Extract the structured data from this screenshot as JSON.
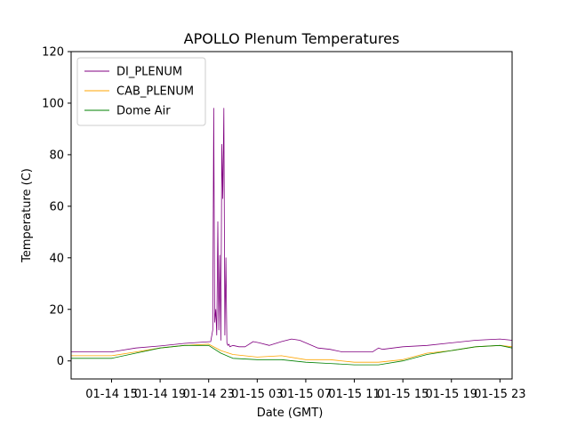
{
  "chart_data": {
    "type": "line",
    "title": "APOLLO Plenum Temperatures",
    "xlabel": "Date (GMT)",
    "ylabel": "Temperature (C)",
    "xlim": [
      "01-14 11:40",
      "01-16 00:00"
    ],
    "ylim": [
      -7,
      120
    ],
    "yticks": [
      0,
      20,
      40,
      60,
      80,
      100,
      120
    ],
    "ytick_labels": [
      "0",
      "20",
      "40",
      "60",
      "80",
      "100",
      "120"
    ],
    "xticks": [
      "01-14 15:00",
      "01-14 19:00",
      "01-14 23:00",
      "01-15 03:00",
      "01-15 07:00",
      "01-15 11:00",
      "01-15 15:00",
      "01-15 19:00",
      "01-15 23:00"
    ],
    "xtick_labels": [
      "01-14 15",
      "01-14 19",
      "01-14 23",
      "01-15 03",
      "01-15 07",
      "01-15 11",
      "01-15 15",
      "01-15 19",
      "01-15 23"
    ],
    "grid": false,
    "legend_position": "top-left",
    "series": [
      {
        "name": "DI_PLENUM",
        "color": "#800080",
        "x": [
          "01-14 11:40",
          "01-14 15:00",
          "01-14 17:00",
          "01-14 19:00",
          "01-14 21:00",
          "01-14 23:10",
          "01-14 23:20",
          "01-14 23:25",
          "01-14 23:30",
          "01-14 23:35",
          "01-14 23:40",
          "01-14 23:45",
          "01-14 23:50",
          "01-14 23:55",
          "01-15 00:00",
          "01-15 00:05",
          "01-15 00:10",
          "01-15 00:15",
          "01-15 00:20",
          "01-15 00:25",
          "01-15 00:30",
          "01-15 00:35",
          "01-15 00:40",
          "01-15 00:45",
          "01-15 01:00",
          "01-15 01:30",
          "01-15 02:00",
          "01-15 02:40",
          "01-15 03:10",
          "01-15 04:00",
          "01-15 05:00",
          "01-15 05:50",
          "01-15 06:30",
          "01-15 08:00",
          "01-15 09:00",
          "01-15 10:00",
          "01-15 11:00",
          "01-15 12:30",
          "01-15 13:00",
          "01-15 13:20",
          "01-15 15:00",
          "01-15 17:00",
          "01-15 19:00",
          "01-15 21:00",
          "01-15 23:00",
          "01-16 00:00"
        ],
        "values": [
          3.5,
          3.5,
          5.0,
          5.8,
          6.8,
          7.5,
          12,
          98,
          15,
          20,
          10,
          54,
          12,
          41,
          8,
          84,
          63,
          98,
          10,
          40,
          7,
          6,
          6.5,
          5.5,
          6,
          5.5,
          5.5,
          7.5,
          7,
          6,
          7.5,
          8.5,
          8,
          5,
          4.5,
          3.5,
          3.5,
          3.5,
          5,
          4.5,
          5.5,
          6,
          7,
          8,
          8.5,
          8
        ]
      },
      {
        "name": "CAB_PLENUM",
        "color": "#FFA500",
        "x": [
          "01-14 11:40",
          "01-14 15:00",
          "01-14 17:00",
          "01-14 19:00",
          "01-14 21:00",
          "01-14 23:00",
          "01-15 00:00",
          "01-15 01:00",
          "01-15 03:00",
          "01-15 05:00",
          "01-15 07:00",
          "01-15 09:00",
          "01-15 11:00",
          "01-15 13:00",
          "01-15 15:00",
          "01-15 17:00",
          "01-15 19:00",
          "01-15 21:00",
          "01-15 23:00",
          "01-16 00:00"
        ],
        "values": [
          2,
          2,
          3.5,
          5,
          6,
          6.5,
          4,
          2.5,
          1.5,
          2,
          0.5,
          0.5,
          -0.5,
          -0.5,
          0.5,
          3,
          4,
          5.5,
          6,
          5.5
        ]
      },
      {
        "name": "Dome Air",
        "color": "#008000",
        "x": [
          "01-14 11:40",
          "01-14 15:00",
          "01-14 17:00",
          "01-14 19:00",
          "01-14 21:00",
          "01-14 23:00",
          "01-15 00:00",
          "01-15 01:00",
          "01-15 03:00",
          "01-15 05:00",
          "01-15 07:00",
          "01-15 09:00",
          "01-15 11:00",
          "01-15 13:00",
          "01-15 15:00",
          "01-15 17:00",
          "01-15 19:00",
          "01-15 21:00",
          "01-15 23:00",
          "01-16 00:00"
        ],
        "values": [
          1,
          1,
          3,
          5,
          6,
          6,
          3,
          1,
          0.5,
          0.5,
          -0.5,
          -1,
          -1.5,
          -1.5,
          0,
          2.5,
          4,
          5.5,
          6,
          5
        ]
      }
    ]
  }
}
